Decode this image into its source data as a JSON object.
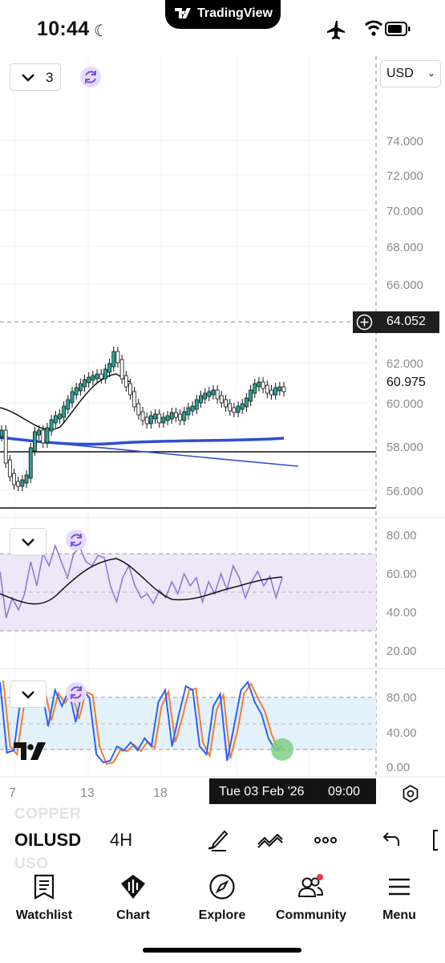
{
  "status_bar": {
    "time": "10:44",
    "island_label": "TradingView"
  },
  "chart_header": {
    "indicator_count": "3",
    "currency": "USD"
  },
  "price_axis": {
    "labels": [
      "74.000",
      "72.000",
      "70.000",
      "68.000",
      "66.000",
      "62.000",
      "60.000",
      "58.000",
      "56.000"
    ],
    "crosshair_price": "64.052",
    "current_price": "60.975"
  },
  "rsi_axis": {
    "labels": [
      "80.00",
      "60.00",
      "40.00",
      "20.00"
    ]
  },
  "stoch_axis": {
    "labels": [
      "80.00",
      "40.00",
      "0.00"
    ]
  },
  "time_axis": {
    "labels": [
      "7",
      "13",
      "18"
    ],
    "crosshair_date": "Tue 03 Feb '26",
    "crosshair_time": "09:00"
  },
  "colors": {
    "rsi_band": "#ede7f7",
    "stoch_band": "#e3f1fb",
    "ma_blue": "#2e4fcf",
    "candle_green": "#26a69a",
    "rsi_line": "#8a74d6",
    "stoch_k": "#2962ff",
    "stoch_d": "#f57c2b",
    "signal_dot": "#7fcf86"
  },
  "symbol_bar": {
    "symbol": "OILUSD",
    "interval": "4H",
    "ghost_above": "COPPER",
    "ghost_below": "USO"
  },
  "bottom_nav": [
    {
      "label": "Watchlist",
      "icon": "watchlist-icon"
    },
    {
      "label": "Chart",
      "icon": "chart-icon"
    },
    {
      "label": "Explore",
      "icon": "compass-icon"
    },
    {
      "label": "Community",
      "icon": "community-icon"
    },
    {
      "label": "Menu",
      "icon": "menu-icon"
    }
  ]
}
